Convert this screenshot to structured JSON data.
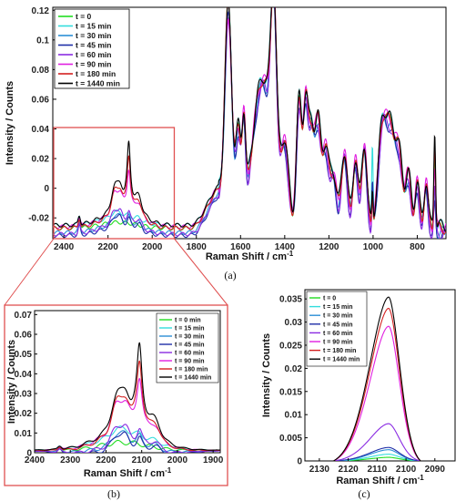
{
  "colors": {
    "t0": "#22dd22",
    "t15": "#33dddd",
    "t30": "#2c8fd6",
    "t45": "#1f2fa8",
    "t60": "#8a2be2",
    "t90": "#e020e0",
    "t180": "#d42020",
    "t1440": "#000000",
    "zoom_box": "#e05050"
  },
  "chart_data": [
    {
      "panel": "a",
      "type": "line",
      "caption": "(a)",
      "xlabel": "Raman Shift / cm",
      "xlabel_sup": "-1",
      "ylabel": "Intensity / Counts",
      "xlim": [
        2450,
        670
      ],
      "x_reversed": true,
      "ylim": [
        -0.034,
        0.122
      ],
      "xticks": [
        2400,
        2200,
        2000,
        1800,
        1600,
        1400,
        1200,
        1000,
        800
      ],
      "xtick_labels": [
        "2400",
        "2200",
        "2000",
        "1800",
        "1600",
        "1400",
        "1200",
        "1000",
        "800"
      ],
      "yticks": [
        -0.02,
        0,
        0.02,
        0.04,
        0.06,
        0.08,
        0.1,
        0.12
      ],
      "ytick_labels": [
        "-0.02",
        "0",
        "0.02",
        "0.04",
        "0.06",
        "0.08",
        "0.1",
        "0.12"
      ],
      "legend_position": "top-left",
      "legend": [
        "t = 0",
        "t = 15 min",
        "t = 30 min",
        "t = 45 min",
        "t = 60 min",
        "t = 90 min",
        "t = 180 min",
        "t = 1440 min"
      ],
      "zoom_region": [
        2450,
        1900
      ],
      "grid": false
    },
    {
      "panel": "b",
      "type": "line",
      "caption": "(b)",
      "xlabel": "Raman Shift / cm",
      "xlabel_sup": "-1",
      "ylabel": "Intensity / Counts",
      "xlim": [
        2400,
        1880
      ],
      "x_reversed": true,
      "ylim": [
        0,
        0.072
      ],
      "xticks": [
        2400,
        2300,
        2200,
        2100,
        2000,
        1900
      ],
      "xtick_labels": [
        "2400",
        "2300",
        "2200",
        "2100",
        "2000",
        "1900"
      ],
      "yticks": [
        0,
        0.01,
        0.02,
        0.03,
        0.04,
        0.05,
        0.06,
        0.07
      ],
      "ytick_labels": [
        "0",
        "0.01",
        "0.02",
        "0.03",
        "0.04",
        "0.05",
        "0.06",
        "0.07"
      ],
      "legend_position": "top-right",
      "legend": [
        "t = 0 min",
        "t = 15 min",
        "t = 30 min",
        "t = 45 min",
        "t = 60 min",
        "t = 90 min",
        "t = 180 min",
        "t = 1440 min"
      ],
      "grid": false
    },
    {
      "panel": "c",
      "type": "line",
      "caption": "(c)",
      "xlabel": "Raman Shift / cm",
      "xlabel_sup": "-1",
      "ylabel": "Intensity / Counts",
      "xlim": [
        2135,
        2083
      ],
      "x_reversed": true,
      "ylim": [
        0,
        0.037
      ],
      "xticks": [
        2130,
        2120,
        2110,
        2100,
        2090
      ],
      "xtick_labels": [
        "2130",
        "2120",
        "2110",
        "2100",
        "2090"
      ],
      "yticks": [
        0,
        0.005,
        0.01,
        0.015,
        0.02,
        0.025,
        0.03,
        0.035
      ],
      "ytick_labels": [
        "0",
        "0.005",
        "0.01",
        "0.015",
        "0.02",
        "0.025",
        "0.03",
        "0.035"
      ],
      "legend_position": "top-left",
      "legend": [
        "t = 0",
        "t = 15 min",
        "t = 30 min",
        "t = 45 min",
        "t = 60 min",
        "t = 90 min",
        "t = 180 min",
        "t = 1440 min"
      ],
      "series": [
        {
          "name": "t = 0",
          "center": 2106,
          "peak": 0.0008
        },
        {
          "name": "t = 15 min",
          "center": 2106,
          "peak": 0.0015
        },
        {
          "name": "t = 30 min",
          "center": 2106,
          "peak": 0.0025
        },
        {
          "name": "t = 45 min",
          "center": 2106,
          "peak": 0.003
        },
        {
          "name": "t = 60 min",
          "center": 2106,
          "peak": 0.0083
        },
        {
          "name": "t = 90 min",
          "center": 2106,
          "peak": 0.03
        },
        {
          "name": "t = 180 min",
          "center": 2106,
          "peak": 0.034
        },
        {
          "name": "t = 1440 min",
          "center": 2106,
          "peak": 0.0365
        }
      ],
      "grid": false
    }
  ]
}
